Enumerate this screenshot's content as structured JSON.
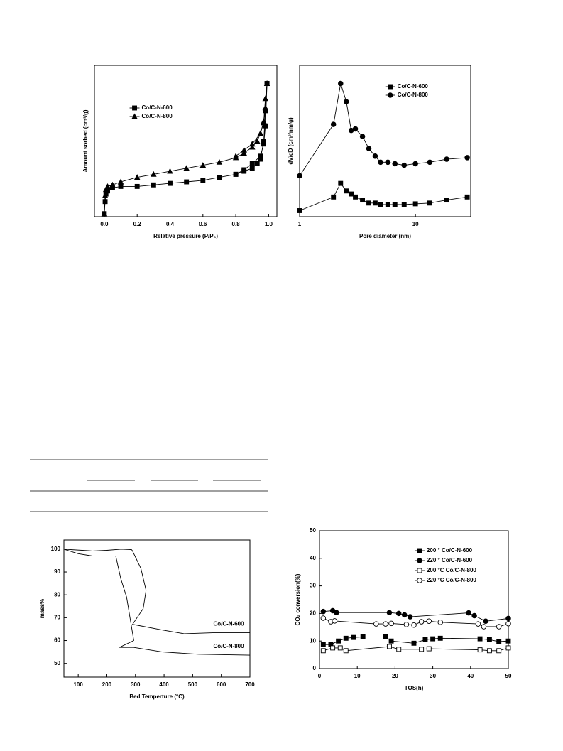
{
  "chart_data": [
    {
      "type": "line",
      "xlabel": "Relative pressure (P/P₀)",
      "ylabel": "Amount sorbed (cm³/g)",
      "xlim": [
        -0.06,
        1.05
      ],
      "ylim": [
        0,
        100
      ],
      "xticks": [
        {
          "value": 0,
          "label": "0.0"
        },
        0.2,
        0.4,
        0.6,
        0.8,
        {
          "value": 1,
          "label": "1.0"
        }
      ],
      "legend": "upper left",
      "series": [
        {
          "name": "Co/C-N-600",
          "color": "#000000",
          "marker": "square",
          "filled": true,
          "x": [
            0,
            0.005,
            0.01,
            0.02,
            0.05,
            0.1,
            0.2,
            0.3,
            0.4,
            0.5,
            0.6,
            0.7,
            0.8,
            0.85,
            0.9,
            0.93,
            0.95,
            0.97,
            0.98,
            0.99,
            0.99,
            0.98,
            0.97,
            0.95,
            0.9,
            0.85,
            0.8
          ],
          "values": [
            2,
            10,
            15,
            17,
            19,
            20,
            20,
            21,
            22,
            23,
            24,
            26,
            28,
            30,
            32,
            35,
            38,
            50,
            70,
            88,
            88,
            60,
            48,
            40,
            35,
            31,
            28
          ]
        },
        {
          "name": "Co/C-N-800",
          "color": "#000000",
          "marker": "triangle",
          "filled": true,
          "x": [
            0,
            0.005,
            0.01,
            0.02,
            0.05,
            0.1,
            0.2,
            0.3,
            0.4,
            0.5,
            0.6,
            0.7,
            0.8,
            0.85,
            0.9,
            0.93,
            0.95,
            0.97,
            0.98,
            0.99,
            0.99,
            0.98,
            0.97,
            0.95,
            0.9,
            0.85,
            0.8
          ],
          "values": [
            2,
            14,
            18,
            20,
            21,
            23,
            26,
            28,
            30,
            32,
            34,
            36,
            39,
            42,
            46,
            50,
            55,
            63,
            78,
            88,
            88,
            72,
            62,
            55,
            48,
            44,
            40
          ]
        }
      ]
    },
    {
      "type": "line",
      "xlabel": "Pore diameter (nm)",
      "ylabel": "dV/dD (cm³/nm/g)",
      "xscale": "log",
      "xlim": [
        1,
        30
      ],
      "ylim": [
        0,
        100
      ],
      "xticks": [
        1,
        10
      ],
      "legend": "upper right",
      "series": [
        {
          "name": "Co/C-N-600",
          "color": "#000000",
          "marker": "square",
          "filled": true,
          "x": [
            1,
            1.96,
            2.26,
            2.53,
            2.79,
            3.03,
            3.49,
            3.96,
            4.49,
            5,
            5.78,
            6.65,
            7.99,
            10,
            13.3,
            18.6,
            28
          ],
          "values": [
            4,
            13,
            22,
            17,
            15,
            13,
            11,
            9,
            9,
            8,
            8,
            8,
            8,
            8.5,
            9,
            11,
            13
          ]
        },
        {
          "name": "Co/C-N-800",
          "color": "#000000",
          "marker": "circle",
          "filled": true,
          "x": [
            1,
            1.96,
            2.26,
            2.53,
            2.79,
            3.03,
            3.49,
            3.96,
            4.49,
            5,
            5.78,
            6.65,
            7.99,
            10,
            13.3,
            18.6,
            28
          ],
          "values": [
            27,
            61,
            88,
            76,
            57,
            58,
            53,
            45,
            40,
            36,
            36,
            35,
            34,
            35,
            36,
            38,
            39
          ]
        }
      ]
    },
    {
      "type": "line",
      "xlabel": "Bed Temperture (°C)",
      "ylabel": "mass%",
      "xlim": [
        50,
        700
      ],
      "ylim": [
        44,
        104
      ],
      "xticks": [
        100,
        200,
        300,
        400,
        500,
        600,
        700
      ],
      "yticks": [
        50,
        60,
        70,
        80,
        90,
        100
      ],
      "legend": "inline",
      "series": [
        {
          "name": "Co/C-N-600",
          "color": "#000000",
          "x": [
            50,
            150,
            200,
            250,
            286,
            289,
            319,
            337,
            327,
            289,
            294,
            394,
            470,
            570,
            700
          ],
          "values": [
            100,
            99.2,
            99.5,
            100,
            99.8,
            99.4,
            91.6,
            82,
            74,
            66.9,
            67,
            64.6,
            63,
            63.4,
            63.4
          ]
        },
        {
          "name": "Co/C-N-800",
          "color": "#000000",
          "x": [
            50,
            100,
            150,
            200,
            231,
            249,
            269,
            281,
            294,
            244,
            294,
            394,
            520,
            700
          ],
          "values": [
            100,
            98,
            97,
            97,
            97,
            87,
            79,
            70,
            60,
            57,
            57,
            55,
            54,
            53.6
          ]
        }
      ]
    },
    {
      "type": "line",
      "xlabel": "TOS(h)",
      "ylabel": "CO₂ conversion(%)",
      "xlim": [
        0,
        50
      ],
      "ylim": [
        0,
        50
      ],
      "xticks": [
        0,
        10,
        20,
        30,
        40,
        50
      ],
      "yticks": [
        0,
        10,
        20,
        30,
        40,
        50
      ],
      "legend": "upper right",
      "series": [
        {
          "name": "200 ° Co/C-N-600",
          "color": "#000000",
          "marker": "square",
          "filled": true,
          "x": [
            1,
            3,
            5,
            7,
            9,
            11.5,
            17.5,
            19,
            25,
            28,
            30,
            32,
            42.5,
            45,
            47.5,
            50
          ],
          "values": [
            8.7,
            8.7,
            10,
            11,
            11.3,
            11.5,
            11.5,
            10,
            9.2,
            10.5,
            10.8,
            11,
            10.8,
            10.5,
            9.8,
            10
          ]
        },
        {
          "name": "220 ° Co/C-N-600",
          "color": "#000000",
          "marker": "circle",
          "filled": true,
          "x": [
            1,
            3.5,
            4.5,
            18.5,
            21,
            22.5,
            24,
            39.5,
            41,
            44,
            50
          ],
          "values": [
            20.7,
            21,
            20.3,
            20.3,
            20,
            19.5,
            18.8,
            20.2,
            19.2,
            17.2,
            18.2
          ]
        },
        {
          "name": "200 °C Co/C-N-800",
          "color": "#000000",
          "marker": "square",
          "filled": false,
          "x": [
            1,
            3.5,
            5.5,
            7,
            18.5,
            21,
            27,
            29,
            42.5,
            45,
            47.5,
            50
          ],
          "values": [
            6.5,
            7.5,
            7.5,
            6.5,
            8,
            7,
            7,
            7.2,
            6.8,
            6.5,
            6.5,
            7.5
          ]
        },
        {
          "name": "220 °C Co/C-N-800",
          "color": "#000000",
          "marker": "circle",
          "filled": false,
          "x": [
            1,
            3,
            4,
            15,
            17.5,
            19,
            23,
            25,
            27,
            29,
            32,
            42,
            43.5,
            47.5,
            50
          ],
          "values": [
            18.3,
            17,
            17.3,
            16.2,
            16.2,
            16.4,
            16,
            15.8,
            17,
            17.2,
            16.8,
            16.2,
            15.2,
            15.2,
            16.3
          ]
        }
      ]
    }
  ]
}
